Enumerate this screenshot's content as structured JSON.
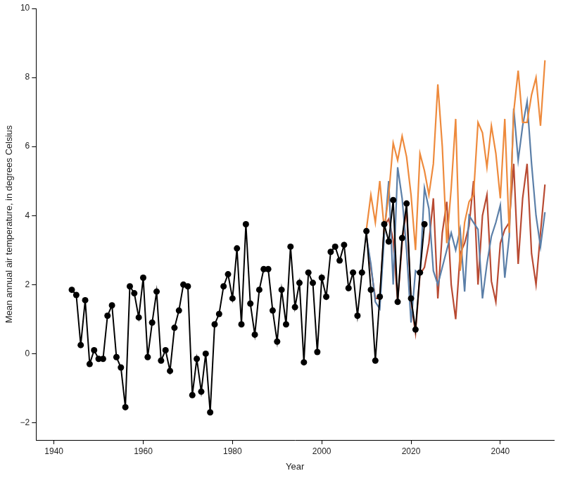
{
  "chart_data": {
    "type": "line",
    "x_label": "Year",
    "y_label": "Mean annual air temperature, in degrees Celsius",
    "xlim": [
      1936,
      2052
    ],
    "xticks": [
      1940,
      1960,
      1980,
      2000,
      2020,
      2040
    ],
    "ylim": [
      -2.5,
      10
    ],
    "yticks": [
      {
        "value": -2,
        "label": "−2"
      },
      0,
      2,
      4,
      6,
      8,
      10
    ],
    "grid": false,
    "series": [
      {
        "color": "#000000",
        "marker": "circle",
        "line_style": "solid",
        "x": [
          1944,
          1945,
          1946,
          1947,
          1948,
          1949,
          1950,
          1951,
          1952,
          1953,
          1954,
          1955,
          1956,
          1957,
          1958,
          1959,
          1960,
          1961,
          1962,
          1963,
          1964,
          1965,
          1966,
          1967,
          1968,
          1969,
          1970,
          1971,
          1972,
          1973,
          1974,
          1975,
          1976,
          1977,
          1978,
          1979,
          1980,
          1981,
          1982,
          1983,
          1984,
          1985,
          1986,
          1987,
          1988,
          1989,
          1990,
          1991,
          1992,
          1993,
          1994,
          1995,
          1996,
          1997,
          1998,
          1999,
          2000,
          2001,
          2002,
          2003,
          2004,
          2005,
          2006,
          2007,
          2008,
          2009,
          2010,
          2011,
          2012,
          2013,
          2014,
          2015,
          2016,
          2017,
          2018,
          2019,
          2020,
          2021,
          2022,
          2023
        ],
        "values": [
          1.85,
          1.7,
          0.25,
          1.55,
          -0.3,
          0.1,
          -0.15,
          -0.15,
          1.1,
          1.4,
          -0.1,
          -0.4,
          -1.55,
          1.95,
          1.75,
          1.05,
          2.2,
          -0.1,
          0.9,
          1.8,
          -0.2,
          0.1,
          -0.5,
          0.75,
          1.25,
          2.0,
          1.95,
          -1.2,
          -0.15,
          -1.1,
          0.0,
          -1.7,
          0.85,
          1.15,
          1.95,
          2.3,
          1.6,
          3.05,
          0.85,
          3.75,
          1.45,
          0.55,
          1.85,
          2.45,
          2.45,
          1.25,
          0.35,
          1.85,
          0.85,
          3.1,
          1.35,
          2.05,
          -0.25,
          2.35,
          2.05,
          0.05,
          2.2,
          1.65,
          2.95,
          3.1,
          2.7,
          3.15,
          1.9,
          2.35,
          1.1,
          2.35,
          3.55,
          1.85,
          -0.2,
          1.65,
          3.75,
          3.25,
          4.45,
          1.5,
          3.35,
          4.35,
          1.6,
          0.7,
          2.35,
          3.75
        ]
      },
      {
        "color": "#ee8a3c",
        "marker": "none",
        "line_style": "solid",
        "x": [
          2010,
          2011,
          2012,
          2013,
          2014,
          2015,
          2016,
          2017,
          2018,
          2019,
          2020,
          2021,
          2022,
          2023,
          2024,
          2025,
          2026,
          2027,
          2028,
          2029,
          2030,
          2031,
          2032,
          2033,
          2034,
          2035,
          2036,
          2037,
          2038,
          2039,
          2040,
          2041,
          2042,
          2043,
          2044,
          2045,
          2046,
          2047,
          2048,
          2049,
          2050
        ],
        "values": [
          3.6,
          4.6,
          3.8,
          5.0,
          3.6,
          4.6,
          6.1,
          5.6,
          6.3,
          5.7,
          4.6,
          3.0,
          5.8,
          5.3,
          4.6,
          5.5,
          7.8,
          6.0,
          3.2,
          4.8,
          6.8,
          2.4,
          3.8,
          4.4,
          4.6,
          6.7,
          6.4,
          5.4,
          6.6,
          5.8,
          4.5,
          6.8,
          3.5,
          7.0,
          8.2,
          6.7,
          6.7,
          7.5,
          8.0,
          6.6,
          8.5
        ]
      },
      {
        "color": "#5b7fa8",
        "marker": "none",
        "line_style": "solid",
        "x": [
          2010,
          2011,
          2012,
          2013,
          2014,
          2015,
          2016,
          2017,
          2018,
          2019,
          2020,
          2021,
          2022,
          2023,
          2024,
          2025,
          2026,
          2027,
          2028,
          2029,
          2030,
          2031,
          2032,
          2033,
          2034,
          2035,
          2036,
          2037,
          2038,
          2039,
          2040,
          2041,
          2042,
          2043,
          2044,
          2045,
          2046,
          2047,
          2048,
          2049,
          2050
        ],
        "values": [
          3.4,
          2.6,
          1.5,
          1.3,
          3.4,
          5.0,
          2.0,
          5.4,
          4.5,
          3.0,
          0.9,
          2.4,
          2.3,
          4.8,
          4.2,
          2.4,
          2.0,
          2.5,
          3.0,
          3.5,
          3.0,
          3.6,
          1.8,
          4.0,
          3.8,
          3.6,
          1.6,
          2.6,
          3.4,
          3.8,
          4.3,
          2.2,
          3.4,
          7.1,
          5.6,
          6.6,
          7.3,
          5.5,
          4.0,
          3.1,
          4.1
        ]
      },
      {
        "color": "#b84a32",
        "marker": "none",
        "line_style": "solid",
        "x": [
          2010,
          2011,
          2012,
          2013,
          2014,
          2015,
          2016,
          2017,
          2018,
          2019,
          2020,
          2021,
          2022,
          2023,
          2024,
          2025,
          2026,
          2027,
          2028,
          2029,
          2030,
          2031,
          2032,
          2033,
          2034,
          2035,
          2036,
          2037,
          2038,
          2039,
          2040,
          2041,
          2042,
          2043,
          2044,
          2045,
          2046,
          2047,
          2048,
          2049,
          2050
        ],
        "values": [
          3.4,
          2.5,
          1.6,
          1.6,
          3.7,
          3.9,
          3.3,
          1.5,
          3.2,
          4.2,
          1.5,
          0.6,
          2.3,
          2.5,
          3.2,
          4.5,
          1.6,
          3.5,
          4.4,
          2.0,
          1.0,
          2.9,
          3.2,
          3.7,
          5.0,
          2.0,
          4.0,
          4.6,
          2.1,
          1.5,
          3.2,
          3.6,
          3.8,
          5.5,
          2.6,
          4.5,
          5.5,
          2.9,
          2.0,
          3.5,
          4.9
        ]
      }
    ]
  }
}
